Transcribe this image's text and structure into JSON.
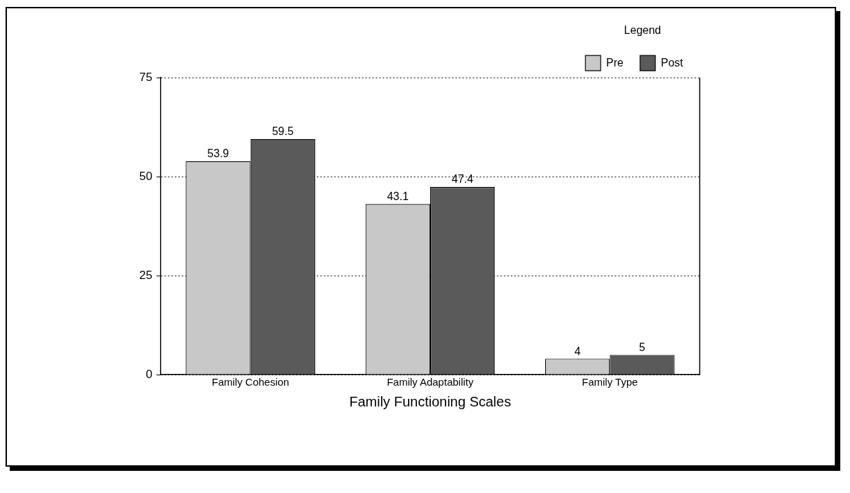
{
  "chart_data": {
    "type": "bar",
    "xlabel": "Family Functioning Scales",
    "legend_title": "Legend",
    "categories": [
      "Family Cohesion",
      "Family Adaptability",
      "Family Type"
    ],
    "series": [
      {
        "name": "Pre",
        "color": "#c8c8c8",
        "values": [
          53.9,
          43.1,
          4
        ]
      },
      {
        "name": "Post",
        "color": "#5a5a5a",
        "values": [
          59.5,
          47.4,
          5
        ]
      }
    ],
    "ylim": [
      0,
      75
    ],
    "yticks": [
      0,
      25,
      50,
      75
    ],
    "grid": "y",
    "legend": "top right",
    "data_labels": true
  }
}
